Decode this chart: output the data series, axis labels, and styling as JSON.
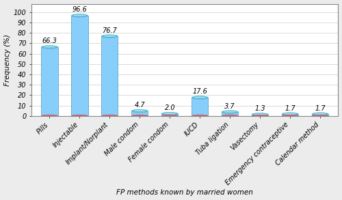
{
  "categories": [
    "Pills",
    "Injectable",
    "Implant/Norplant",
    "Male condom",
    "Female condom",
    "IUCD",
    "Tuba ligation",
    "Vasectomy",
    "Emergency contraceptive",
    "Calendar method"
  ],
  "values": [
    66.3,
    96.6,
    76.7,
    4.7,
    2.0,
    17.6,
    3.7,
    1.3,
    1.7,
    1.7
  ],
  "bar_body_color": "#87CEFA",
  "bar_top_color": "#5BB8D4",
  "bar_edge_color": "#4A9AB5",
  "bar_bottom_color": "#C06878",
  "bar_bottom_edge": "#9A4858",
  "xlabel": "FP methods known by married women",
  "ylabel": "Frequency (%)",
  "ylim": [
    0,
    108
  ],
  "yticks": [
    0,
    10,
    20,
    30,
    40,
    50,
    60,
    70,
    80,
    90,
    100
  ],
  "fig_bg": "#ECECEC",
  "ax_bg": "#FFFFFF",
  "grid_color": "#CCCCCC",
  "label_fontsize": 7.5,
  "tick_fontsize": 7,
  "value_fontsize": 7,
  "bar_width": 0.55
}
